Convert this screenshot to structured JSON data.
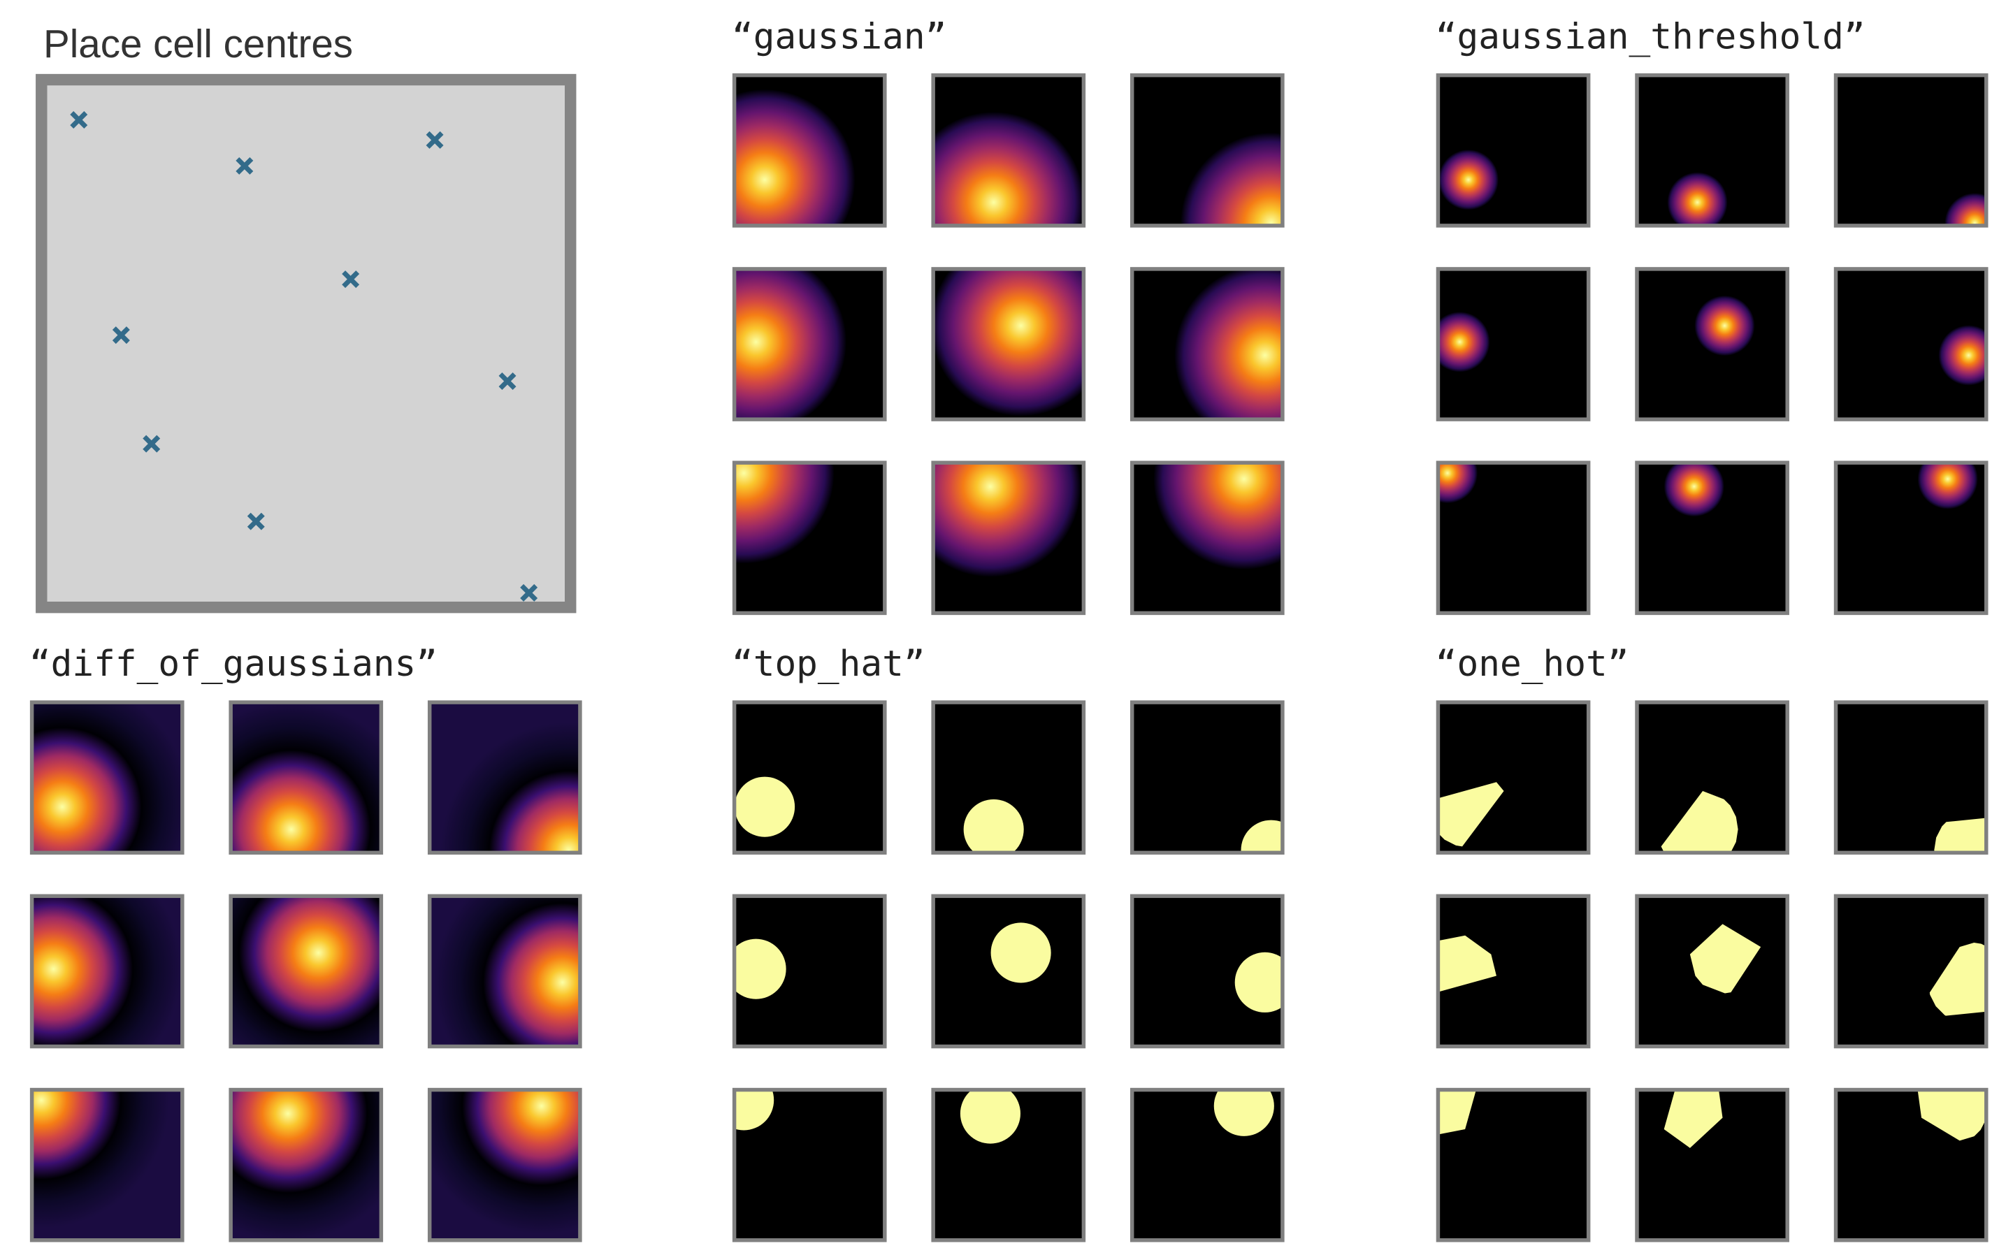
{
  "figure": {
    "title": "Place cell centres",
    "place_cells": {
      "x": [
        0.202,
        0.402,
        0.924,
        0.144,
        0.583,
        0.883,
        0.063,
        0.38,
        0.744
      ],
      "y": [
        0.305,
        0.155,
        0.017,
        0.515,
        0.623,
        0.426,
        0.931,
        0.842,
        0.892
      ],
      "xlim": [
        0,
        1
      ],
      "ylim": [
        0,
        1
      ],
      "color": "#336b8a",
      "background": "#d3d3d3",
      "border": "#858585"
    },
    "panels": [
      {
        "title": "“gaussian”",
        "kind": "gaussian"
      },
      {
        "title": "“gaussian_threshold”",
        "kind": "gaussian_threshold"
      },
      {
        "title": "“diff_of_gaussians”",
        "kind": "diff_of_gaussians"
      },
      {
        "title": "“top_hat”",
        "kind": "top_hat"
      },
      {
        "title": "“one_hot”",
        "kind": "one_hot"
      }
    ]
  }
}
